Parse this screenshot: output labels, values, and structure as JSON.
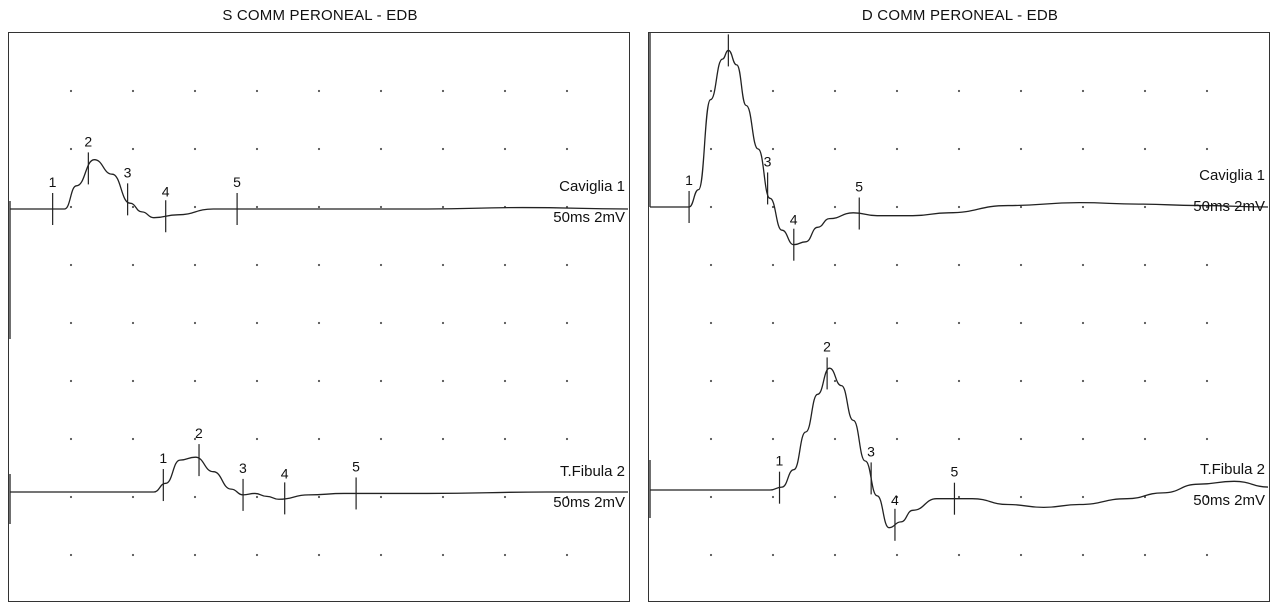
{
  "chart_data": [
    {
      "type": "line",
      "title": "S COMM PERONEAL - EDB",
      "traces": [
        {
          "site": "Caviglia 1",
          "scale": "50ms 2mV",
          "baseline": 0,
          "points": [
            [
              0,
              0
            ],
            [
              4.5,
              0
            ],
            [
              5.5,
              0.8
            ],
            [
              7,
              1.7
            ],
            [
              8.5,
              1.2
            ],
            [
              10,
              0.2
            ],
            [
              11,
              -0.1
            ],
            [
              12,
              -0.3
            ],
            [
              14,
              -0.2
            ],
            [
              17,
              0
            ],
            [
              25,
              0
            ],
            [
              35,
              0
            ],
            [
              43,
              0.05
            ],
            [
              52,
              0
            ]
          ],
          "markers": [
            {
              "label": "1",
              "x": 3.5
            },
            {
              "label": "2",
              "x": 6.5
            },
            {
              "label": "3",
              "x": 9.8
            },
            {
              "label": "4",
              "x": 13
            },
            {
              "label": "5",
              "x": 19
            }
          ]
        },
        {
          "site": "T.Fibula 2",
          "scale": "50ms 2mV",
          "baseline": 0,
          "points": [
            [
              0,
              0
            ],
            [
              12,
              0
            ],
            [
              13,
              0.3
            ],
            [
              14.2,
              1.1
            ],
            [
              15.5,
              1.2
            ],
            [
              17,
              0.7
            ],
            [
              18.5,
              0.1
            ],
            [
              19.5,
              -0.1
            ],
            [
              20.5,
              -0.05
            ],
            [
              21.5,
              -0.15
            ],
            [
              22.5,
              -0.25
            ],
            [
              25,
              -0.1
            ],
            [
              28,
              -0.05
            ],
            [
              35,
              -0.05
            ],
            [
              45,
              0
            ],
            [
              52,
              0
            ]
          ],
          "markers": [
            {
              "label": "1",
              "x": 12.8
            },
            {
              "label": "2",
              "x": 15.8
            },
            {
              "label": "3",
              "x": 19.5
            },
            {
              "label": "4",
              "x": 23
            },
            {
              "label": "5",
              "x": 29
            }
          ]
        }
      ]
    },
    {
      "type": "line",
      "title": "D COMM PERONEAL - EDB",
      "traces": [
        {
          "site": "Caviglia 1",
          "scale": "50ms 2mV",
          "baseline": 0,
          "points": [
            [
              0,
              0
            ],
            [
              3.2,
              0
            ],
            [
              4,
              0.6
            ],
            [
              5,
              3.7
            ],
            [
              6,
              5.1
            ],
            [
              6.5,
              5.4
            ],
            [
              7.2,
              4.9
            ],
            [
              8,
              3.5
            ],
            [
              9,
              2.0
            ],
            [
              10,
              0.3
            ],
            [
              11,
              -0.8
            ],
            [
              12,
              -1.3
            ],
            [
              13,
              -1.2
            ],
            [
              14,
              -0.7
            ],
            [
              15,
              -0.4
            ],
            [
              17,
              -0.2
            ],
            [
              19,
              -0.3
            ],
            [
              22,
              -0.3
            ],
            [
              25,
              -0.2
            ],
            [
              30,
              0.05
            ],
            [
              36,
              0.15
            ],
            [
              41,
              0.1
            ],
            [
              46,
              0.05
            ],
            [
              52,
              0
            ]
          ],
          "markers": [
            {
              "label": "1",
              "x": 3.2
            },
            {
              "label": "2",
              "x": 6.5
            },
            {
              "label": "3",
              "x": 9.8
            },
            {
              "label": "4",
              "x": 12
            },
            {
              "label": "5",
              "x": 17.5
            }
          ]
        },
        {
          "site": "T.Fibula 2",
          "scale": "50ms 2mV",
          "baseline": 0,
          "points": [
            [
              0,
              0
            ],
            [
              10,
              0
            ],
            [
              11,
              0.1
            ],
            [
              12,
              0.7
            ],
            [
              13,
              2.0
            ],
            [
              14,
              3.3
            ],
            [
              15,
              4.2
            ],
            [
              16,
              3.6
            ],
            [
              17,
              2.4
            ],
            [
              18,
              1.0
            ],
            [
              19,
              -0.2
            ],
            [
              20,
              -1.3
            ],
            [
              21,
              -1.1
            ],
            [
              22,
              -0.7
            ],
            [
              24,
              -0.3
            ],
            [
              27,
              -0.3
            ],
            [
              30,
              -0.5
            ],
            [
              33,
              -0.6
            ],
            [
              36,
              -0.5
            ],
            [
              40,
              -0.3
            ],
            [
              43,
              -0.1
            ],
            [
              46,
              0.2
            ],
            [
              49,
              0.3
            ],
            [
              52,
              0.1
            ]
          ],
          "markers": [
            {
              "label": "1",
              "x": 10.8
            },
            {
              "label": "2",
              "x": 14.8
            },
            {
              "label": "3",
              "x": 18.5
            },
            {
              "label": "4",
              "x": 20.5
            },
            {
              "label": "5",
              "x": 25.5
            }
          ]
        }
      ]
    }
  ]
}
